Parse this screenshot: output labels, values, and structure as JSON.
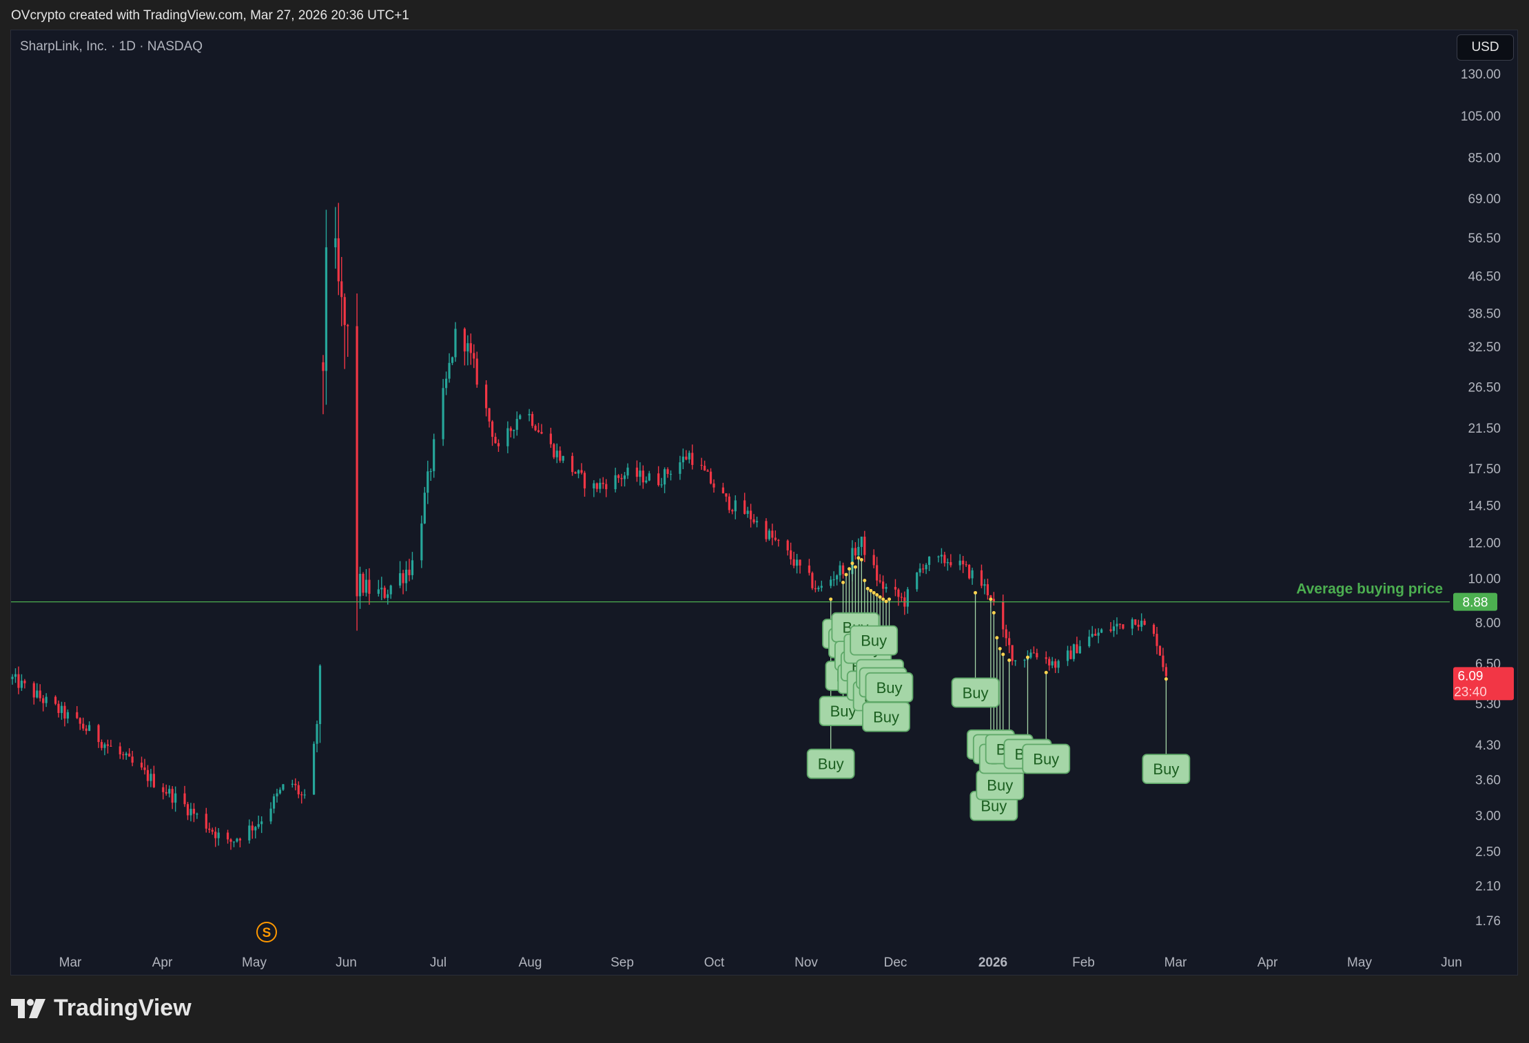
{
  "header": {
    "text": "OVcrypto created with TradingView.com, Mar 27, 2026 20:36 UTC+1"
  },
  "chart": {
    "symbol_title": "SharpLink, Inc. · 1D · NASDAQ",
    "currency": "USD"
  },
  "footer": {
    "logo_text": "TradingView"
  },
  "colors": {
    "background": "#141824",
    "up": "#26a69a",
    "down": "#f23645",
    "buy_label_fill": "#a5d6a7",
    "buy_label_text": "#1b5e20",
    "average_line": "#4caf50",
    "axis_text": "#b2b5be"
  },
  "chart_data": {
    "type": "candlestick",
    "scale": "log",
    "y_ticks": [
      130,
      105,
      85,
      69,
      56.5,
      46.5,
      38.5,
      32.5,
      26.5,
      21.5,
      17.5,
      14.5,
      12,
      10,
      8,
      6.5,
      5.3,
      4.3,
      3.6,
      3.0,
      2.5,
      2.1,
      1.76
    ],
    "y_tick_labels": [
      "130.00",
      "105.00",
      "85.00",
      "69.00",
      "56.50",
      "46.50",
      "38.50",
      "32.50",
      "26.50",
      "21.50",
      "17.50",
      "14.50",
      "12.00",
      "10.00",
      "8.00",
      "6.50",
      "5.30",
      "4.30",
      "3.60",
      "3.00",
      "2.50",
      "2.10",
      "1.76"
    ],
    "x_labels": [
      {
        "label": "Mar",
        "bold": false
      },
      {
        "label": "Apr",
        "bold": false
      },
      {
        "label": "May",
        "bold": false
      },
      {
        "label": "Jun",
        "bold": false
      },
      {
        "label": "Jul",
        "bold": false
      },
      {
        "label": "Aug",
        "bold": false
      },
      {
        "label": "Sep",
        "bold": false
      },
      {
        "label": "Oct",
        "bold": false
      },
      {
        "label": "Nov",
        "bold": false
      },
      {
        "label": "Dec",
        "bold": false
      },
      {
        "label": "2026",
        "bold": true
      },
      {
        "label": "Feb",
        "bold": false
      },
      {
        "label": "Mar",
        "bold": false
      },
      {
        "label": "Apr",
        "bold": false
      },
      {
        "label": "May",
        "bold": false
      },
      {
        "label": "Jun",
        "bold": false
      }
    ],
    "average_line": {
      "label": "Average buying price",
      "value": 8.88,
      "value_label": "8.88"
    },
    "last_price": {
      "value": 6.09,
      "value_label": "6.09",
      "countdown": "23:40"
    },
    "split_marker": {
      "label": "S"
    },
    "buy_label": "Buy",
    "price_anchors": [
      {
        "day": 0,
        "price": 6.0
      },
      {
        "day": 25,
        "price": 4.6
      },
      {
        "day": 55,
        "price": 3.2
      },
      {
        "day": 70,
        "price": 2.6
      },
      {
        "day": 80,
        "price": 2.9
      },
      {
        "day": 90,
        "price": 3.6
      },
      {
        "day": 97,
        "price": 3.1
      },
      {
        "day": 98,
        "price": 4.2
      },
      {
        "day": 100,
        "price": 5.5
      },
      {
        "day": 101,
        "price": 30
      },
      {
        "day": 102,
        "price": 58
      },
      {
        "day": 104,
        "price": 54
      },
      {
        "day": 107,
        "price": 38
      },
      {
        "day": 110,
        "price": 31
      },
      {
        "day": 111,
        "price": 10
      },
      {
        "day": 115,
        "price": 9.5
      },
      {
        "day": 120,
        "price": 9.2
      },
      {
        "day": 130,
        "price": 10.8
      },
      {
        "day": 134,
        "price": 15
      },
      {
        "day": 140,
        "price": 25
      },
      {
        "day": 145,
        "price": 37
      },
      {
        "day": 150,
        "price": 29
      },
      {
        "day": 158,
        "price": 19
      },
      {
        "day": 166,
        "price": 24
      },
      {
        "day": 175,
        "price": 19.5
      },
      {
        "day": 188,
        "price": 15.8
      },
      {
        "day": 200,
        "price": 17
      },
      {
        "day": 210,
        "price": 16.5
      },
      {
        "day": 220,
        "price": 18.8
      },
      {
        "day": 232,
        "price": 14.8
      },
      {
        "day": 240,
        "price": 13.7
      },
      {
        "day": 252,
        "price": 11.3
      },
      {
        "day": 262,
        "price": 9.4
      },
      {
        "day": 270,
        "price": 10.6
      },
      {
        "day": 276,
        "price": 12
      },
      {
        "day": 282,
        "price": 9.7
      },
      {
        "day": 290,
        "price": 8.9
      },
      {
        "day": 296,
        "price": 10.8
      },
      {
        "day": 305,
        "price": 11.0
      },
      {
        "day": 313,
        "price": 10.1
      },
      {
        "day": 318,
        "price": 9.2
      },
      {
        "day": 322,
        "price": 7.5
      },
      {
        "day": 326,
        "price": 6.6
      },
      {
        "day": 332,
        "price": 6.9
      },
      {
        "day": 340,
        "price": 6.4
      },
      {
        "day": 348,
        "price": 7.3
      },
      {
        "day": 358,
        "price": 7.8
      },
      {
        "day": 365,
        "price": 8.2
      },
      {
        "day": 372,
        "price": 7.3
      },
      {
        "day": 375,
        "price": 6.09
      }
    ],
    "buys": [
      {
        "day": 266,
        "price": 9.0,
        "label_price": 3.9
      },
      {
        "day": 270,
        "price": 9.8,
        "label_price": 5.1
      },
      {
        "day": 271,
        "price": 10.2,
        "label_price": 7.55
      },
      {
        "day": 272,
        "price": 10.5,
        "label_price": 6.1
      },
      {
        "day": 273,
        "price": 10.8,
        "label_price": 7.2
      },
      {
        "day": 274,
        "price": 10.6,
        "label_price": 7.8
      },
      {
        "day": 275,
        "price": 11.1,
        "label_price": 6.75
      },
      {
        "day": 276,
        "price": 11.0,
        "label_price": 6.0
      },
      {
        "day": 277,
        "price": 9.9,
        "label_price": 6.4
      },
      {
        "day": 278,
        "price": 9.5,
        "label_price": 7.0
      },
      {
        "day": 279,
        "price": 9.4,
        "label_price": 5.8
      },
      {
        "day": 280,
        "price": 9.3,
        "label_price": 7.3
      },
      {
        "day": 281,
        "price": 9.2,
        "label_price": 5.5
      },
      {
        "day": 282,
        "price": 9.1,
        "label_price": 6.15
      },
      {
        "day": 283,
        "price": 9.0,
        "label_price": 5.9
      },
      {
        "day": 284,
        "price": 8.9,
        "label_price": 4.95
      },
      {
        "day": 285,
        "price": 9.0,
        "label_price": 5.75
      },
      {
        "day": 313,
        "price": 9.3,
        "label_price": 5.6
      },
      {
        "day": 318,
        "price": 9.0,
        "label_price": 4.3
      },
      {
        "day": 319,
        "price": 8.4,
        "label_price": 3.15
      },
      {
        "day": 320,
        "price": 7.4,
        "label_price": 4.2
      },
      {
        "day": 321,
        "price": 7.0,
        "label_price": 3.5
      },
      {
        "day": 322,
        "price": 6.8,
        "label_price": 4.0
      },
      {
        "day": 324,
        "price": 6.6,
        "label_price": 4.2
      },
      {
        "day": 330,
        "price": 6.7,
        "label_price": 4.1
      },
      {
        "day": 336,
        "price": 6.2,
        "label_price": 4.0
      },
      {
        "day": 375,
        "price": 6.0,
        "label_price": 3.8
      }
    ]
  }
}
